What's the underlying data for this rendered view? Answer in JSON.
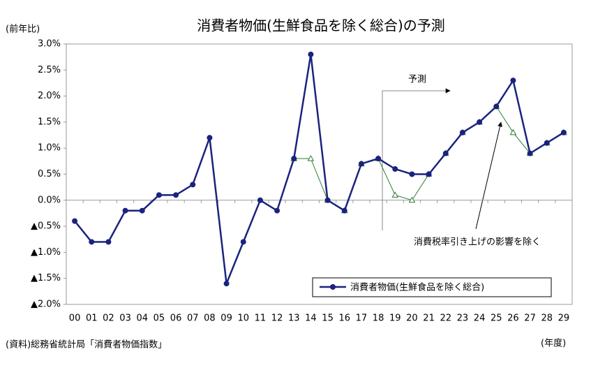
{
  "chart_data": {
    "type": "line",
    "title": "消費者物価(生鮮食品を除く総合)の予測",
    "y_label": "(前年比)",
    "x_label": "(年度)",
    "source": "(資料)総務省統計局「消費者物価指数」",
    "annotations": [
      "予測",
      "消費税率引き上げの影響を除く"
    ],
    "categories": [
      "00",
      "01",
      "02",
      "03",
      "04",
      "05",
      "06",
      "07",
      "08",
      "09",
      "10",
      "11",
      "12",
      "13",
      "14",
      "15",
      "16",
      "17",
      "18",
      "19",
      "20",
      "21",
      "22",
      "23",
      "24",
      "25",
      "26",
      "27",
      "28",
      "29"
    ],
    "series": [
      {
        "name": "消費者物価(生鮮食品を除く総合)",
        "color": "#1a237e",
        "values": [
          -0.4,
          -0.8,
          -0.8,
          -0.2,
          -0.2,
          0.1,
          0.1,
          0.3,
          1.2,
          -1.6,
          -0.8,
          0.0,
          -0.2,
          0.8,
          2.8,
          0.0,
          -0.2,
          0.7,
          0.8,
          0.6,
          0.5,
          0.5,
          0.9,
          1.3,
          1.5,
          1.8,
          2.3,
          0.9,
          1.1,
          1.3
        ]
      },
      {
        "color": "#2e7d32",
        "values": [
          null,
          null,
          null,
          null,
          null,
          null,
          null,
          null,
          null,
          null,
          null,
          null,
          null,
          0.8,
          0.8,
          0.0,
          -0.2,
          0.7,
          0.8,
          0.1,
          0.0,
          0.5,
          0.9,
          1.3,
          1.5,
          1.8,
          1.3,
          0.9,
          1.1,
          1.3
        ]
      }
    ],
    "ylim": [
      -2.0,
      3.0
    ],
    "yticks": [
      {
        "value": 3.0,
        "label": "3.0%"
      },
      {
        "value": 2.5,
        "label": "2.5%"
      },
      {
        "value": 2.0,
        "label": "2.0%"
      },
      {
        "value": 1.5,
        "label": "1.5%"
      },
      {
        "value": 1.0,
        "label": "1.0%"
      },
      {
        "value": 0.5,
        "label": "0.5%"
      },
      {
        "value": 0.0,
        "label": "0.0%"
      },
      {
        "value": -0.5,
        "label": "▲0.5%"
      },
      {
        "value": -1.0,
        "label": "▲1.0%"
      },
      {
        "value": -1.5,
        "label": "▲1.5%"
      },
      {
        "value": -2.0,
        "label": "▲2.0%"
      }
    ],
    "legend": "bottom-right"
  }
}
